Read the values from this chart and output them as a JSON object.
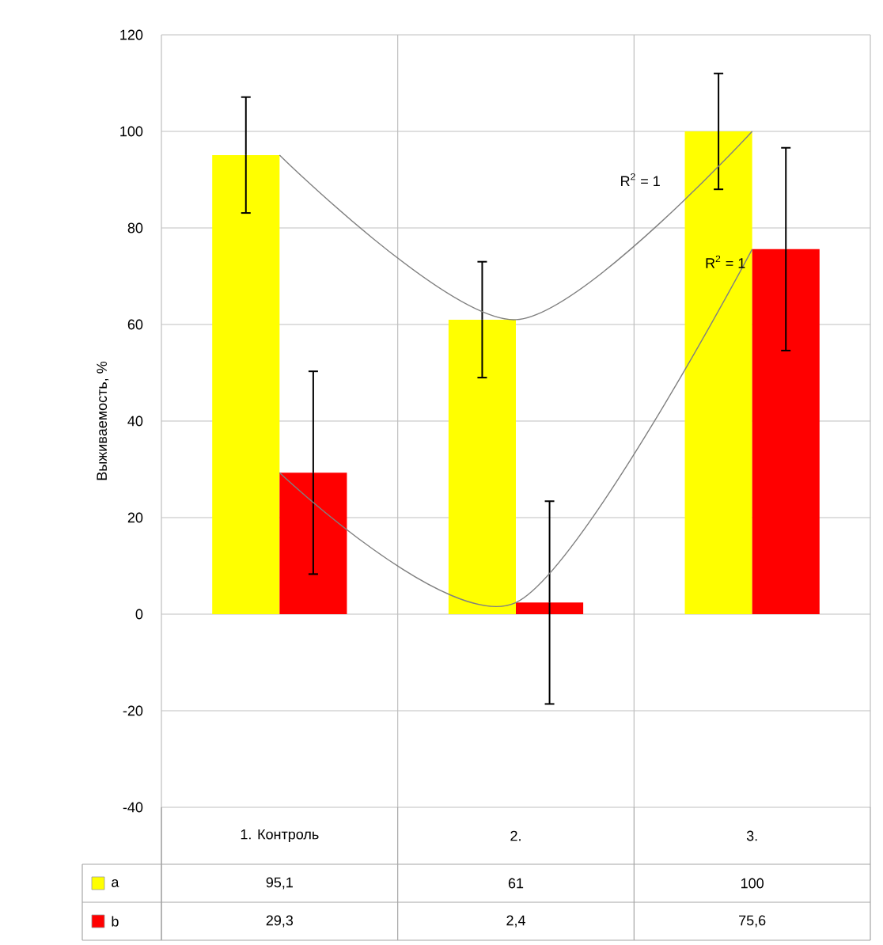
{
  "chart_data": {
    "type": "bar",
    "ylabel": "Выживаемость, %",
    "categories": [
      "1. Контроль",
      "2.",
      "3."
    ],
    "series": [
      {
        "name": "a",
        "color": "#ffff00",
        "values": [
          95.1,
          61,
          100
        ],
        "errors": [
          12,
          12,
          12
        ],
        "value_labels": [
          "95,1",
          "61",
          "100"
        ]
      },
      {
        "name": "b",
        "color": "#ff0000",
        "values": [
          29.3,
          2.4,
          75.6
        ],
        "errors": [
          21,
          21,
          21
        ],
        "value_labels": [
          "29,3",
          "2,4",
          "75,6"
        ]
      },
      {
        "type": "line",
        "color": "#808080",
        "values": [
          95.1,
          61,
          100
        ]
      },
      {
        "type": "line",
        "color": "#808080",
        "values": [
          29.3,
          2.4,
          75.6
        ]
      }
    ],
    "annotations": [
      "R$^{2}$ = 1",
      "R$^{2}$ = 1"
    ],
    "ylim": [
      -40,
      120
    ],
    "yticks": [
      -40,
      -20,
      0,
      20,
      40,
      60,
      80,
      100,
      120
    ],
    "grid": true,
    "legend": "bottom",
    "marker": "none"
  }
}
